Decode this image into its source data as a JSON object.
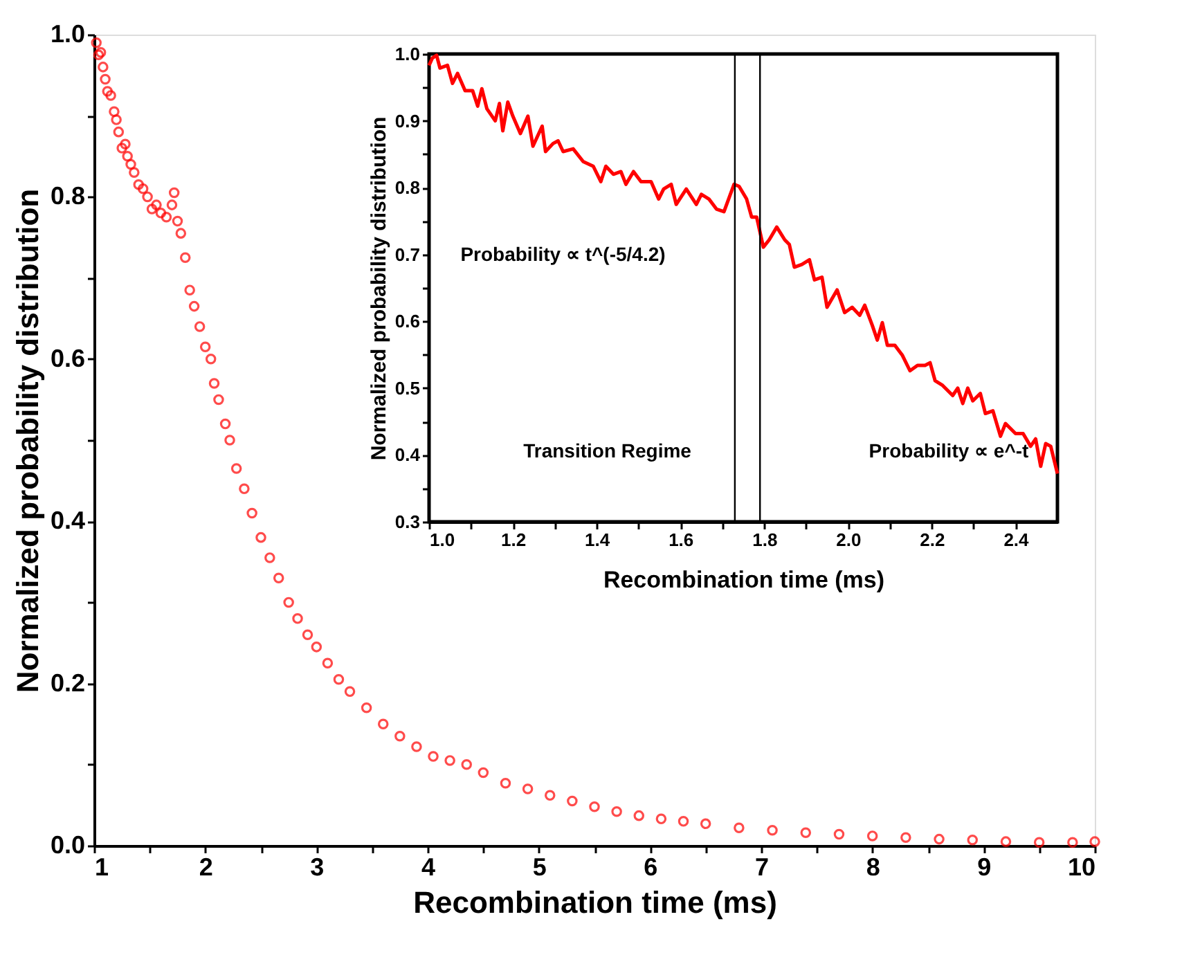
{
  "chart_data": [
    {
      "type": "scatter",
      "xlabel": "Recombination time (ms)",
      "ylabel": "Normalized probability distribution",
      "marker": "circle",
      "grid": false,
      "xlim": [
        1,
        10
      ],
      "ylim": [
        0,
        1.0
      ],
      "xticks": [
        1,
        {
          "value": 1.5,
          "label": null
        },
        2,
        {
          "value": 2.5,
          "label": null
        },
        3,
        {
          "value": 3.5,
          "label": null
        },
        4,
        {
          "value": 4.5,
          "label": null
        },
        5,
        {
          "value": 5.5,
          "label": null
        },
        6,
        {
          "value": 6.5,
          "label": null
        },
        7,
        {
          "value": 7.5,
          "label": null
        },
        8,
        {
          "value": 8.5,
          "label": null
        },
        9,
        {
          "value": 9.5,
          "label": null
        },
        10
      ],
      "yticks": [
        {
          "value": 0,
          "label": "0.0"
        },
        {
          "value": 0.1,
          "label": null
        },
        {
          "value": 0.2,
          "label": "0.2"
        },
        {
          "value": 0.3,
          "label": null
        },
        {
          "value": 0.4,
          "label": "0.4"
        },
        {
          "value": 0.5,
          "label": null
        },
        {
          "value": 0.6,
          "label": "0.6"
        },
        {
          "value": 0.7,
          "label": null
        },
        {
          "value": 0.8,
          "label": "0.8"
        },
        {
          "value": 0.9,
          "label": null
        },
        {
          "value": 1.0,
          "label": "1.0"
        }
      ],
      "x": [
        1.02,
        1.04,
        1.06,
        1.08,
        1.1,
        1.12,
        1.15,
        1.18,
        1.2,
        1.22,
        1.25,
        1.28,
        1.3,
        1.33,
        1.36,
        1.4,
        1.44,
        1.48,
        1.52,
        1.56,
        1.6,
        1.65,
        1.7,
        1.72,
        1.75,
        1.78,
        1.82,
        1.86,
        1.9,
        1.95,
        2.0,
        2.05,
        2.08,
        2.12,
        2.18,
        2.22,
        2.28,
        2.35,
        2.42,
        2.5,
        2.58,
        2.66,
        2.75,
        2.83,
        2.92,
        3.0,
        3.1,
        3.2,
        3.3,
        3.45,
        3.6,
        3.75,
        3.9,
        4.05,
        4.2,
        4.35,
        4.5,
        4.7,
        4.9,
        5.1,
        5.3,
        5.5,
        5.7,
        5.9,
        6.1,
        6.3,
        6.5,
        6.8,
        7.1,
        7.4,
        7.7,
        8.0,
        8.3,
        8.6,
        8.9,
        9.2,
        9.5,
        9.8,
        10.0
      ],
      "series": [
        {
          "color": "#ff0000",
          "values": [
            0.99,
            0.975,
            0.978,
            0.96,
            0.945,
            0.93,
            0.925,
            0.905,
            0.895,
            0.88,
            0.86,
            0.865,
            0.85,
            0.84,
            0.83,
            0.815,
            0.81,
            0.8,
            0.785,
            0.79,
            0.78,
            0.775,
            0.79,
            0.805,
            0.77,
            0.755,
            0.725,
            0.685,
            0.665,
            0.64,
            0.615,
            0.6,
            0.57,
            0.55,
            0.52,
            0.5,
            0.465,
            0.44,
            0.41,
            0.38,
            0.355,
            0.33,
            0.3,
            0.28,
            0.26,
            0.245,
            0.225,
            0.205,
            0.19,
            0.17,
            0.15,
            0.135,
            0.122,
            0.11,
            0.105,
            0.1,
            0.09,
            0.077,
            0.07,
            0.062,
            0.055,
            0.048,
            0.042,
            0.037,
            0.033,
            0.03,
            0.027,
            0.022,
            0.019,
            0.016,
            0.014,
            0.012,
            0.01,
            0.008,
            0.007,
            0.005,
            0.004,
            0.004,
            0.005
          ]
        }
      ]
    },
    {
      "type": "line",
      "xlabel": "Recombination time (ms)",
      "ylabel": "Normalized probability distribution",
      "marker": "none",
      "line_style": "solid",
      "grid": false,
      "xlim": [
        1.0,
        2.5
      ],
      "ylim": [
        0.3,
        1.0
      ],
      "xticks": [
        {
          "value": 1.0,
          "label": "1.0"
        },
        {
          "value": 1.1,
          "label": null
        },
        {
          "value": 1.2,
          "label": "1.2"
        },
        {
          "value": 1.3,
          "label": null
        },
        {
          "value": 1.4,
          "label": "1.4"
        },
        {
          "value": 1.5,
          "label": null
        },
        {
          "value": 1.6,
          "label": "1.6"
        },
        {
          "value": 1.7,
          "label": null
        },
        {
          "value": 1.8,
          "label": "1.8"
        },
        {
          "value": 1.9,
          "label": null
        },
        {
          "value": 2.0,
          "label": "2.0"
        },
        {
          "value": 2.1,
          "label": null
        },
        {
          "value": 2.2,
          "label": "2.2"
        },
        {
          "value": 2.3,
          "label": null
        },
        {
          "value": 2.4,
          "label": "2.4"
        }
      ],
      "yticks": [
        0.3,
        {
          "value": 0.35,
          "label": null
        },
        0.4,
        {
          "value": 0.45,
          "label": null
        },
        0.5,
        {
          "value": 0.55,
          "label": null
        },
        0.6,
        {
          "value": 0.65,
          "label": null
        },
        0.7,
        {
          "value": 0.75,
          "label": null
        },
        0.8,
        {
          "value": 0.85,
          "label": null
        },
        0.9,
        {
          "value": 0.95,
          "label": null
        },
        {
          "value": 1.0,
          "label": "1.0"
        }
      ],
      "ref_lines": [
        {
          "axis": "x",
          "value": 1.73,
          "color": "#000000"
        },
        {
          "axis": "x",
          "value": 1.79,
          "color": "#000000"
        }
      ],
      "annotations": [
        "Probability ∝ t^(-5/4.2)",
        "Transition Regime",
        "Probability ∝ e^-t"
      ],
      "x": [
        1.0,
        1.008,
        1.018,
        1.026,
        1.044,
        1.056,
        1.068,
        1.086,
        1.104,
        1.116,
        1.126,
        1.138,
        1.158,
        1.168,
        1.176,
        1.188,
        1.2,
        1.218,
        1.236,
        1.248,
        1.27,
        1.278,
        1.296,
        1.308,
        1.32,
        1.344,
        1.368,
        1.392,
        1.41,
        1.422,
        1.44,
        1.458,
        1.47,
        1.488,
        1.506,
        1.53,
        1.548,
        1.56,
        1.578,
        1.59,
        1.614,
        1.638,
        1.65,
        1.668,
        1.686,
        1.704,
        1.728,
        1.74,
        1.758,
        1.77,
        1.782,
        1.798,
        1.812,
        1.83,
        1.849,
        1.86,
        1.872,
        1.89,
        1.908,
        1.92,
        1.938,
        1.95,
        1.974,
        1.992,
        2.01,
        2.028,
        2.04,
        2.058,
        2.07,
        2.082,
        2.094,
        2.112,
        2.13,
        2.148,
        2.166,
        2.184,
        2.196,
        2.208,
        2.226,
        2.25,
        2.262,
        2.274,
        2.286,
        2.298,
        2.316,
        2.328,
        2.346,
        2.364,
        2.376,
        2.4,
        2.418,
        2.436,
        2.448,
        2.46,
        2.472,
        2.484,
        2.5
      ],
      "series": [
        {
          "color": "#ff0000",
          "values": [
            0.983,
            0.994,
            0.998,
            0.979,
            0.983,
            0.956,
            0.971,
            0.945,
            0.945,
            0.922,
            0.948,
            0.918,
            0.9,
            0.926,
            0.885,
            0.928,
            0.907,
            0.881,
            0.907,
            0.862,
            0.892,
            0.854,
            0.866,
            0.87,
            0.854,
            0.858,
            0.839,
            0.832,
            0.809,
            0.832,
            0.82,
            0.824,
            0.805,
            0.824,
            0.809,
            0.809,
            0.783,
            0.798,
            0.805,
            0.775,
            0.798,
            0.775,
            0.79,
            0.783,
            0.768,
            0.764,
            0.805,
            0.802,
            0.783,
            0.756,
            0.756,
            0.711,
            0.722,
            0.741,
            0.722,
            0.715,
            0.681,
            0.685,
            0.692,
            0.662,
            0.666,
            0.621,
            0.647,
            0.613,
            0.621,
            0.609,
            0.624,
            0.594,
            0.572,
            0.598,
            0.564,
            0.564,
            0.549,
            0.526,
            0.534,
            0.534,
            0.538,
            0.511,
            0.504,
            0.489,
            0.5,
            0.477,
            0.5,
            0.481,
            0.492,
            0.462,
            0.466,
            0.428,
            0.447,
            0.432,
            0.432,
            0.413,
            0.424,
            0.383,
            0.417,
            0.413,
            0.372
          ]
        }
      ]
    }
  ]
}
